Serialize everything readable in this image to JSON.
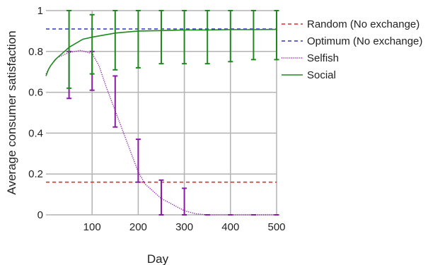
{
  "chart_data": {
    "type": "line",
    "xlabel": "Day",
    "ylabel": "Average consumer satisfaction",
    "xlim": [
      0,
      500
    ],
    "ylim": [
      0,
      1
    ],
    "x_ticks": [
      100,
      200,
      300,
      400,
      500
    ],
    "y_ticks": [
      0,
      0.2,
      0.4,
      0.6,
      0.8,
      1
    ],
    "y_tick_labels": [
      "0",
      "0.2",
      "0.4",
      "0.6",
      "0.8",
      "1"
    ],
    "grid": true,
    "legend_position": "right",
    "series": [
      {
        "name": "Random (No exchange)",
        "color": "#e8232a",
        "style": "dashed",
        "x": [
          0,
          50,
          100,
          150,
          200,
          250,
          300,
          350,
          400,
          450,
          500
        ],
        "y": [
          0.16,
          0.16,
          0.16,
          0.16,
          0.16,
          0.16,
          0.16,
          0.16,
          0.16,
          0.16,
          0.16
        ]
      },
      {
        "name": "Optimum (No exchange)",
        "color": "#2b35c7",
        "style": "dashed",
        "x": [
          0,
          50,
          100,
          150,
          200,
          250,
          300,
          350,
          400,
          450,
          500
        ],
        "y": [
          0.91,
          0.91,
          0.91,
          0.91,
          0.91,
          0.91,
          0.91,
          0.91,
          0.91,
          0.91,
          0.91
        ]
      },
      {
        "name": "Selfish",
        "color": "#8c1aa8",
        "style": "dotted",
        "x": [
          0,
          10,
          25,
          50,
          75,
          100,
          115,
          130,
          150,
          170,
          190,
          200,
          215,
          230,
          250,
          275,
          300,
          325,
          350,
          400,
          450,
          500
        ],
        "y": [
          0.69,
          0.73,
          0.77,
          0.795,
          0.805,
          0.79,
          0.73,
          0.63,
          0.51,
          0.39,
          0.27,
          0.21,
          0.15,
          0.12,
          0.08,
          0.05,
          0.02,
          0.005,
          0.0,
          0.0,
          0.0,
          0.0
        ],
        "error_bars": [
          {
            "x": 50,
            "low": 0.57,
            "high": 0.8
          },
          {
            "x": 100,
            "low": 0.61,
            "high": 0.8
          },
          {
            "x": 150,
            "low": 0.43,
            "high": 0.68
          },
          {
            "x": 200,
            "low": 0.16,
            "high": 0.37
          },
          {
            "x": 250,
            "low": 0.0,
            "high": 0.17
          },
          {
            "x": 300,
            "low": 0.0,
            "high": 0.13
          },
          {
            "x": 350,
            "low": 0.0,
            "high": 0.0
          },
          {
            "x": 400,
            "low": 0.0,
            "high": 0.0
          },
          {
            "x": 450,
            "low": 0.0,
            "high": 0.0
          },
          {
            "x": 500,
            "low": 0.0,
            "high": 0.0
          }
        ]
      },
      {
        "name": "Social",
        "color": "#1e8a1e",
        "style": "solid",
        "x": [
          0,
          5,
          10,
          20,
          30,
          40,
          50,
          65,
          80,
          100,
          125,
          150,
          175,
          200,
          250,
          300,
          350,
          400,
          450,
          500
        ],
        "y": [
          0.68,
          0.71,
          0.73,
          0.76,
          0.78,
          0.8,
          0.82,
          0.84,
          0.86,
          0.87,
          0.88,
          0.89,
          0.895,
          0.9,
          0.902,
          0.905,
          0.905,
          0.907,
          0.907,
          0.908
        ],
        "error_bars": [
          {
            "x": 50,
            "low": 0.62,
            "high": 1.0
          },
          {
            "x": 100,
            "low": 0.69,
            "high": 0.98
          },
          {
            "x": 150,
            "low": 0.71,
            "high": 1.0
          },
          {
            "x": 200,
            "low": 0.72,
            "high": 1.0
          },
          {
            "x": 250,
            "low": 0.74,
            "high": 1.0
          },
          {
            "x": 300,
            "low": 0.74,
            "high": 1.0
          },
          {
            "x": 350,
            "low": 0.74,
            "high": 1.0
          },
          {
            "x": 400,
            "low": 0.75,
            "high": 1.0
          },
          {
            "x": 450,
            "low": 0.76,
            "high": 1.0
          },
          {
            "x": 500,
            "low": 0.76,
            "high": 1.0
          }
        ]
      }
    ]
  }
}
